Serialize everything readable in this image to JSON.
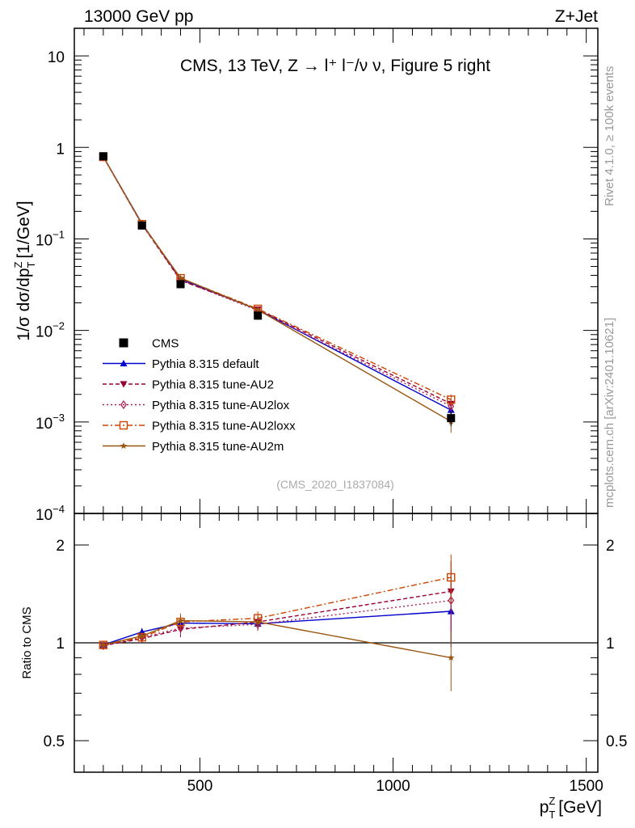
{
  "header": {
    "left": "13000 GeV pp",
    "right": "Z+Jet"
  },
  "side_labels": {
    "rivet": "Rivet 4.1.0, ≥ 100k events",
    "mcplots": "mcplots.cern.ch [arXiv:2401.10621]"
  },
  "colors": {
    "cms": "#000000",
    "default": "#0000cc",
    "au2": "#990033",
    "au2lox": "#aa2255",
    "au2loxx": "#cc4400",
    "au2m": "#995511",
    "side": "#999999"
  },
  "chart_data": [
    {
      "type": "line",
      "panel": "main",
      "title": "CMS, 13 TeV, Z →  l⁺ l⁻/ν ν, Figure 5 right",
      "watermark": "(CMS_2020_I1837084)",
      "ylabel": "1/σ dσ/dp",
      "ylabel_sup": "Z",
      "ylabel_sub": "T",
      "ylabel_unit": "[1/GeV]",
      "yscale": "log",
      "ylim": [
        0.0001,
        20
      ],
      "xlim": [
        175,
        1530
      ],
      "ytick_labels": [
        {
          "value": 10,
          "mant": "10",
          "exp": ""
        },
        {
          "value": 1,
          "mant": "1",
          "exp": ""
        },
        {
          "value": 0.1,
          "mant": "10",
          "exp": "−1"
        },
        {
          "value": 0.01,
          "mant": "10",
          "exp": "−2"
        },
        {
          "value": 0.001,
          "mant": "10",
          "exp": "−3"
        },
        {
          "value": 0.0001,
          "mant": "10",
          "exp": "−4"
        }
      ],
      "legend_position": "center-left",
      "x": [
        250,
        350,
        450,
        650,
        1150
      ],
      "data": {
        "name": "CMS",
        "values": [
          0.8,
          0.14,
          0.032,
          0.0145,
          0.0011
        ],
        "errors": [
          0.02,
          0.004,
          0.0015,
          0.0007,
          0.0002
        ]
      },
      "series": [
        {
          "key": "default",
          "name": "Pythia 8.315 default",
          "marker": "triangle-up",
          "dash": "",
          "values": [
            0.79,
            0.147,
            0.0365,
            0.0168,
            0.00135
          ],
          "errors": [
            0.005,
            0.002,
            0.0006,
            0.0004,
            0.0002
          ]
        },
        {
          "key": "au2",
          "name": "Pythia 8.315 tune-AU2",
          "marker": "triangle-down",
          "dash": "5,3",
          "values": [
            0.785,
            0.144,
            0.0352,
            0.017,
            0.00158
          ],
          "errors": [
            0.005,
            0.002,
            0.0006,
            0.0004,
            0.0002
          ]
        },
        {
          "key": "au2lox",
          "name": "Pythia 8.315 tune-AU2lox",
          "marker": "diamond-open",
          "dash": "2,3",
          "values": [
            0.785,
            0.145,
            0.0355,
            0.0165,
            0.00148
          ],
          "errors": [
            0.005,
            0.002,
            0.0006,
            0.0004,
            0.0002
          ]
        },
        {
          "key": "au2loxx",
          "name": "Pythia 8.315 tune-AU2loxx",
          "marker": "square-open",
          "dash": "7,3,2,3",
          "values": [
            0.787,
            0.145,
            0.0372,
            0.0172,
            0.00175
          ],
          "errors": [
            0.005,
            0.002,
            0.0006,
            0.0004,
            0.00025
          ]
        },
        {
          "key": "au2m",
          "name": "Pythia 8.315 tune-AU2m",
          "marker": "star",
          "dash": "",
          "values": [
            0.788,
            0.146,
            0.0374,
            0.0168,
            0.00101
          ],
          "errors": [
            0.005,
            0.002,
            0.0006,
            0.0004,
            0.00025
          ]
        }
      ]
    },
    {
      "type": "line",
      "panel": "ratio",
      "ylabel": "Ratio to CMS",
      "xlabel": "p",
      "xlabel_sup": "Z",
      "xlabel_sub": "T",
      "xlabel_unit": "[GeV]",
      "yscale": "log",
      "ylim": [
        0.4,
        2.5
      ],
      "xlim": [
        175,
        1530
      ],
      "ytick_labels": [
        {
          "value": 2,
          "label": "2"
        },
        {
          "value": 1,
          "label": "1"
        },
        {
          "value": 0.5,
          "label": "0.5"
        }
      ],
      "xtick_labels": [
        {
          "value": 500,
          "label": "500"
        },
        {
          "value": 1000,
          "label": "1000"
        },
        {
          "value": 1500,
          "label": "1500"
        }
      ],
      "x": [
        250,
        350,
        450,
        650,
        1150
      ],
      "reference": 1,
      "series": [
        {
          "key": "default",
          "values": [
            0.985,
            1.08,
            1.15,
            1.145,
            1.25
          ],
          "errors": [
            0.02,
            0.03,
            0.06,
            0.05,
            0.28
          ]
        },
        {
          "key": "au2",
          "values": [
            0.98,
            1.03,
            1.1,
            1.16,
            1.44
          ],
          "errors": [
            0.02,
            0.03,
            0.06,
            0.05,
            0.35
          ]
        },
        {
          "key": "au2lox",
          "values": [
            0.98,
            1.04,
            1.11,
            1.14,
            1.35
          ],
          "errors": [
            0.02,
            0.03,
            0.06,
            0.05,
            0.33
          ]
        },
        {
          "key": "au2loxx",
          "values": [
            0.985,
            1.04,
            1.16,
            1.19,
            1.59
          ],
          "errors": [
            0.02,
            0.03,
            0.06,
            0.06,
            0.28
          ]
        },
        {
          "key": "au2m",
          "values": [
            0.985,
            1.05,
            1.17,
            1.16,
            0.9
          ],
          "errors": [
            0.02,
            0.03,
            0.06,
            0.05,
            0.19
          ]
        }
      ]
    }
  ]
}
